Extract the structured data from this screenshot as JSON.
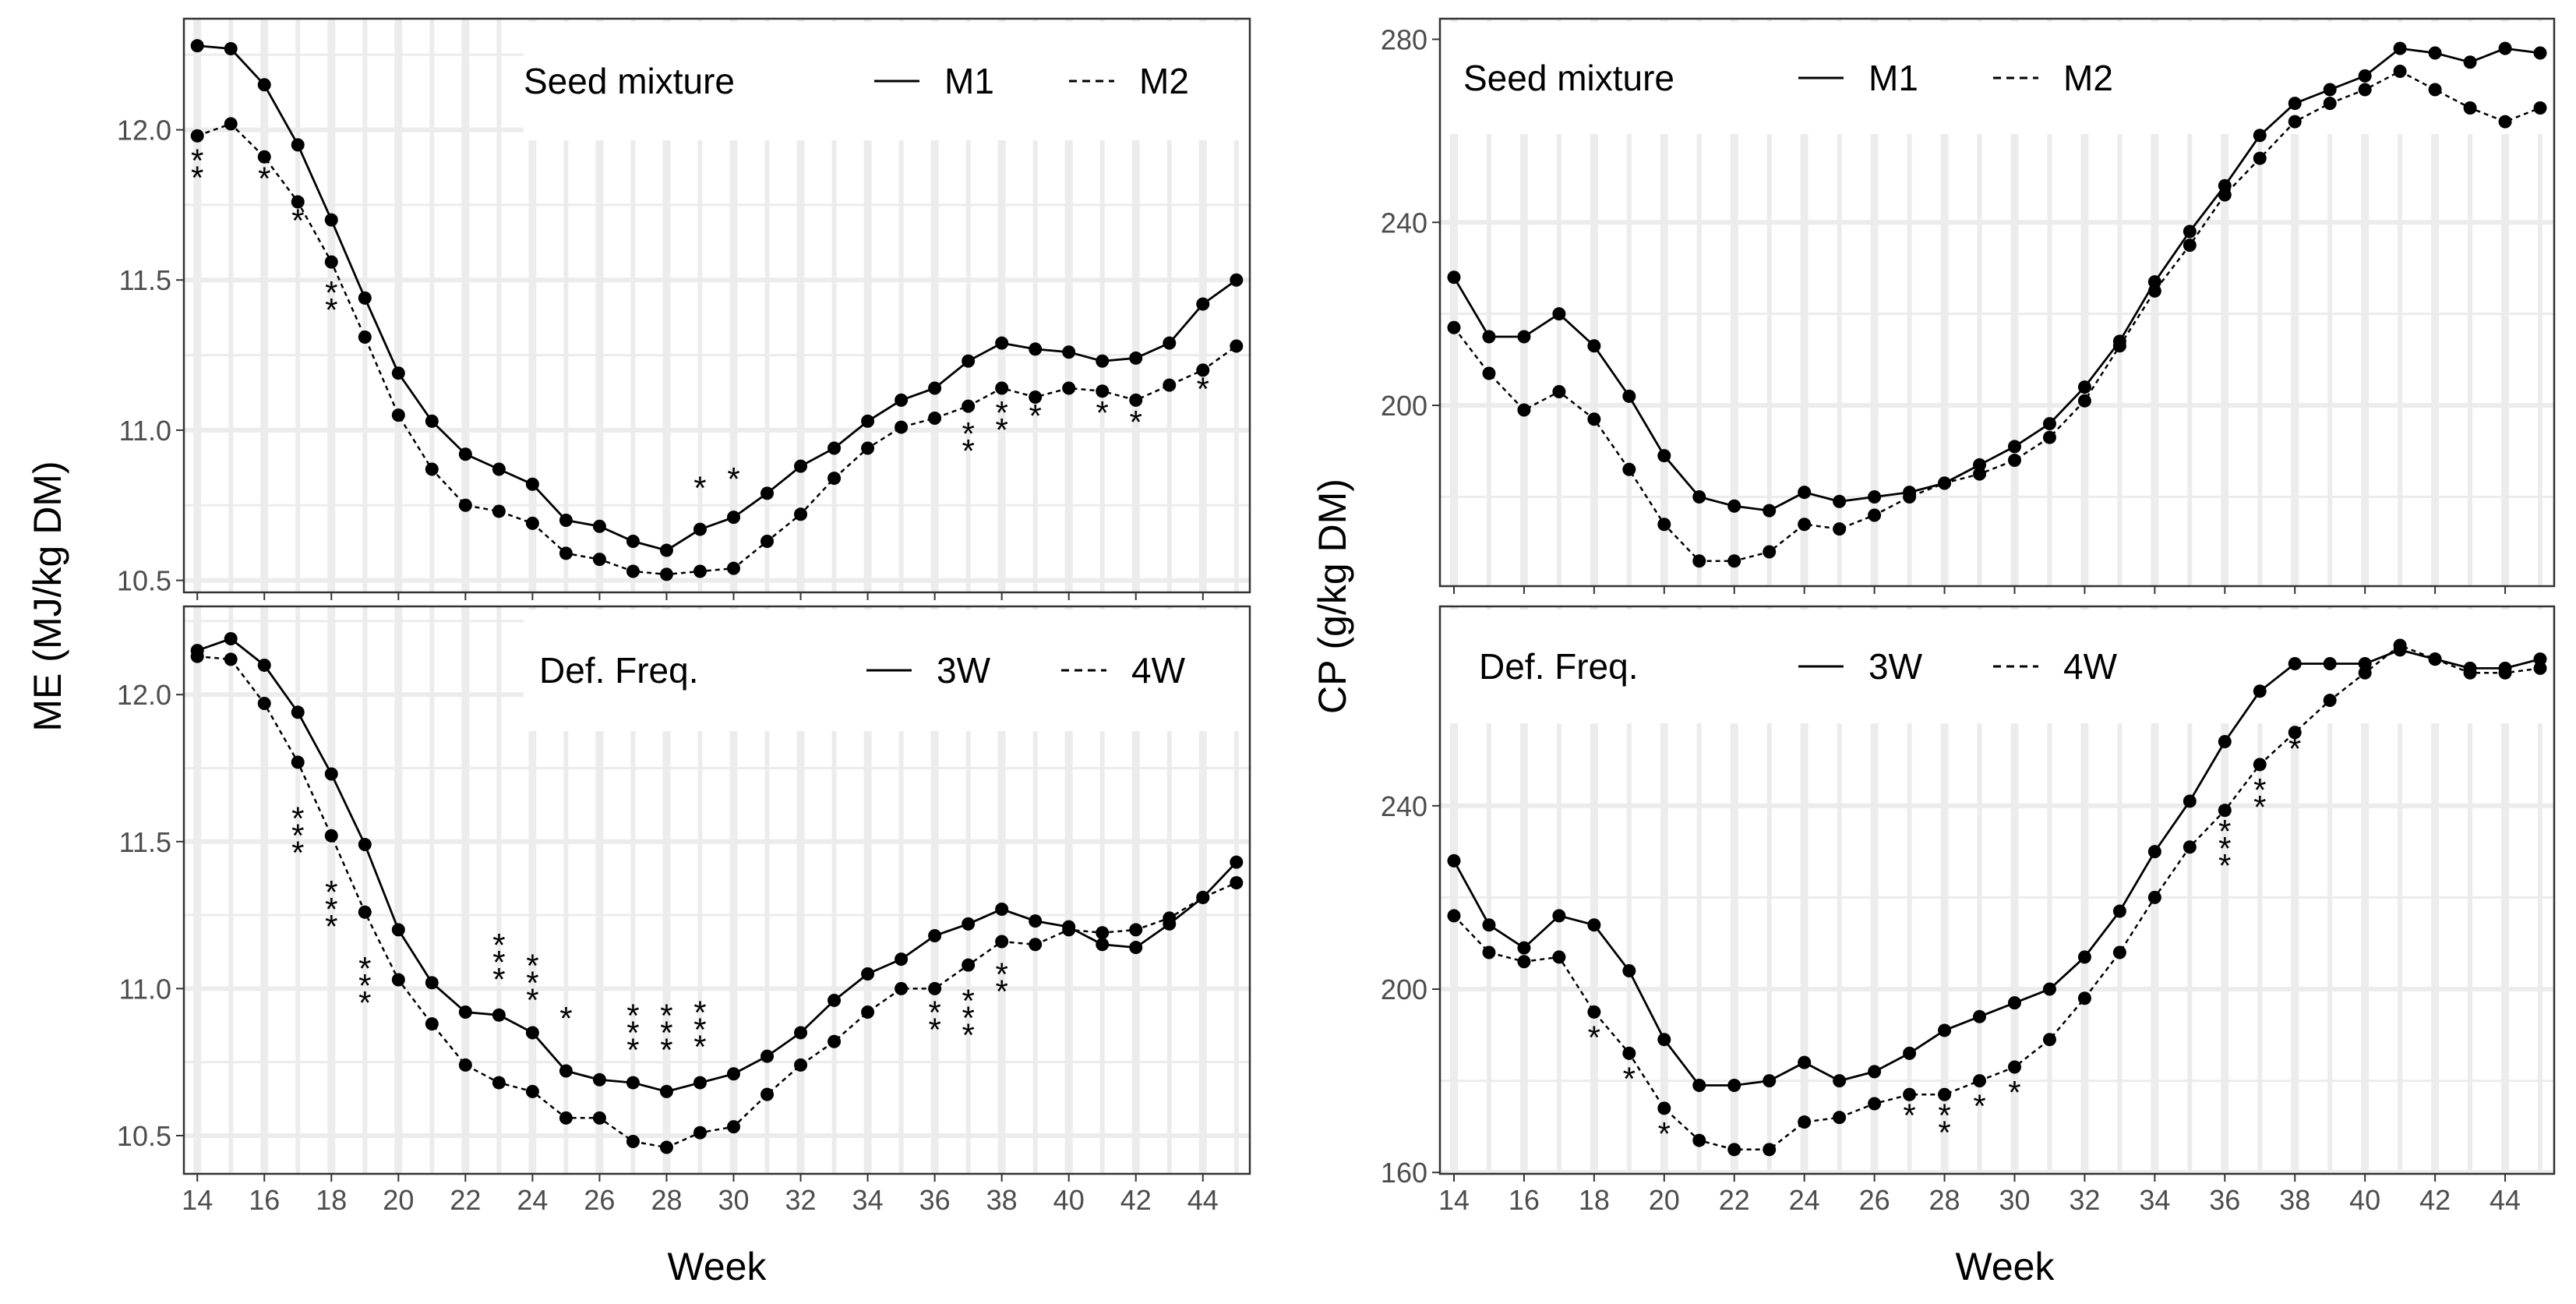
{
  "figure": {
    "x_axis_label": "Week",
    "left_y_label": "ME (MJ/kg DM)",
    "right_y_label": "CP (g/kg DM)"
  },
  "chart_data": [
    {
      "id": "me_seed",
      "type": "line",
      "ylabel": "ME (MJ/kg DM)",
      "xlabel": "Week",
      "xlim": [
        13.6,
        45.4
      ],
      "ylim": [
        10.46,
        12.37
      ],
      "x_ticks": [
        14,
        16,
        18,
        20,
        22,
        24,
        26,
        28,
        30,
        32,
        34,
        36,
        38,
        40,
        42,
        44
      ],
      "y_ticks": [
        10.5,
        11.0,
        11.5,
        12.0
      ],
      "y_tick_labels": [
        "10.5",
        "11.0",
        "11.5",
        "12.0"
      ],
      "show_x_tick_labels": false,
      "legend": {
        "title": "Seed mixture",
        "placement": "top-right"
      },
      "x": [
        14,
        15,
        16,
        17,
        18,
        19,
        20,
        21,
        22,
        23,
        24,
        25,
        26,
        27,
        28,
        29,
        30,
        31,
        32,
        33,
        34,
        35,
        36,
        37,
        38,
        39,
        40,
        41,
        42,
        43,
        44,
        45
      ],
      "series": [
        {
          "name": "M1",
          "dash": "solid",
          "values": [
            12.28,
            12.27,
            12.15,
            11.95,
            11.7,
            11.44,
            11.19,
            11.03,
            10.92,
            10.87,
            10.82,
            10.7,
            10.68,
            10.63,
            10.6,
            10.67,
            10.71,
            10.79,
            10.88,
            10.94,
            11.03,
            11.1,
            11.14,
            11.23,
            11.29,
            11.27,
            11.26,
            11.23,
            11.24,
            11.29,
            11.42,
            11.5
          ]
        },
        {
          "name": "M2",
          "dash": "dashed",
          "values": [
            11.98,
            12.02,
            11.91,
            11.76,
            11.56,
            11.31,
            11.05,
            10.87,
            10.75,
            10.73,
            10.69,
            10.59,
            10.57,
            10.53,
            10.52,
            10.53,
            10.54,
            10.63,
            10.72,
            10.84,
            10.94,
            11.01,
            11.04,
            11.08,
            11.14,
            11.11,
            11.14,
            11.13,
            11.1,
            11.15,
            11.2,
            11.28
          ]
        }
      ],
      "annotations": [
        {
          "x": 14,
          "y": 11.86,
          "text": "**"
        },
        {
          "x": 16,
          "y": 11.8,
          "text": "*"
        },
        {
          "x": 17,
          "y": 11.66,
          "text": "*"
        },
        {
          "x": 18,
          "y": 11.42,
          "text": "**"
        },
        {
          "x": 29,
          "y": 10.77,
          "text": "*"
        },
        {
          "x": 30,
          "y": 10.8,
          "text": "*"
        },
        {
          "x": 37,
          "y": 10.95,
          "text": "**"
        },
        {
          "x": 38,
          "y": 11.02,
          "text": "**"
        },
        {
          "x": 39,
          "y": 11.01,
          "text": "*"
        },
        {
          "x": 41,
          "y": 11.02,
          "text": "*"
        },
        {
          "x": 42,
          "y": 10.99,
          "text": "*"
        },
        {
          "x": 44,
          "y": 11.1,
          "text": "*"
        }
      ]
    },
    {
      "id": "me_def",
      "type": "line",
      "ylabel": "ME (MJ/kg DM)",
      "xlabel": "Week",
      "xlim": [
        13.6,
        45.4
      ],
      "ylim": [
        10.37,
        12.3
      ],
      "x_ticks": [
        14,
        16,
        18,
        20,
        22,
        24,
        26,
        28,
        30,
        32,
        34,
        36,
        38,
        40,
        42,
        44
      ],
      "x_tick_labels": [
        "14",
        "16",
        "18",
        "20",
        "22",
        "24",
        "26",
        "28",
        "30",
        "32",
        "34",
        "36",
        "38",
        "40",
        "42",
        "44"
      ],
      "y_ticks": [
        10.5,
        11.0,
        11.5,
        12.0
      ],
      "y_tick_labels": [
        "10.5",
        "11.0",
        "11.5",
        "12.0"
      ],
      "show_x_tick_labels": true,
      "legend": {
        "title": "Def. Freq.",
        "placement": "top-right"
      },
      "x": [
        14,
        15,
        16,
        17,
        18,
        19,
        20,
        21,
        22,
        23,
        24,
        25,
        26,
        27,
        28,
        29,
        30,
        31,
        32,
        33,
        34,
        35,
        36,
        37,
        38,
        39,
        40,
        41,
        42,
        43,
        44,
        45
      ],
      "series": [
        {
          "name": "3W",
          "dash": "solid",
          "values": [
            12.15,
            12.19,
            12.1,
            11.94,
            11.73,
            11.49,
            11.2,
            11.02,
            10.92,
            10.91,
            10.85,
            10.72,
            10.69,
            10.68,
            10.65,
            10.68,
            10.71,
            10.77,
            10.85,
            10.96,
            11.05,
            11.1,
            11.18,
            11.22,
            11.27,
            11.23,
            11.21,
            11.15,
            11.14,
            11.22,
            11.31,
            11.43
          ]
        },
        {
          "name": "4W",
          "dash": "dashed",
          "values": [
            12.13,
            12.12,
            11.97,
            11.77,
            11.52,
            11.26,
            11.03,
            10.88,
            10.74,
            10.68,
            10.65,
            10.56,
            10.56,
            10.48,
            10.46,
            10.51,
            10.53,
            10.64,
            10.74,
            10.82,
            10.92,
            11.0,
            11.0,
            11.08,
            11.16,
            11.15,
            11.2,
            11.19,
            11.2,
            11.24,
            11.31,
            11.36
          ]
        }
      ],
      "annotations": [
        {
          "x": 17,
          "y": 11.54,
          "text": "***"
        },
        {
          "x": 18,
          "y": 11.29,
          "text": "***"
        },
        {
          "x": 19,
          "y": 11.03,
          "text": "***"
        },
        {
          "x": 23,
          "y": 11.11,
          "text": "***"
        },
        {
          "x": 24,
          "y": 11.04,
          "text": "***"
        },
        {
          "x": 25,
          "y": 10.86,
          "text": "*"
        },
        {
          "x": 27,
          "y": 10.87,
          "text": "***"
        },
        {
          "x": 28,
          "y": 10.87,
          "text": "***"
        },
        {
          "x": 29,
          "y": 10.88,
          "text": "***"
        },
        {
          "x": 36,
          "y": 10.88,
          "text": "**"
        },
        {
          "x": 37,
          "y": 10.92,
          "text": "***"
        },
        {
          "x": 38,
          "y": 11.01,
          "text": "**"
        }
      ]
    },
    {
      "id": "cp_seed",
      "type": "line",
      "ylabel": "CP (g/kg DM)",
      "xlabel": "Week",
      "xlim": [
        13.6,
        45.4
      ],
      "ylim": [
        160.5,
        284.5
      ],
      "x_ticks": [
        14,
        16,
        18,
        20,
        22,
        24,
        26,
        28,
        30,
        32,
        34,
        36,
        38,
        40,
        42,
        44
      ],
      "y_ticks": [
        200,
        240,
        280
      ],
      "y_tick_labels": [
        "200",
        "240",
        "280"
      ],
      "show_x_tick_labels": false,
      "legend": {
        "title": "Seed mixture",
        "placement": "top-left"
      },
      "x": [
        14,
        15,
        16,
        17,
        18,
        19,
        20,
        21,
        22,
        23,
        24,
        25,
        26,
        27,
        28,
        29,
        30,
        31,
        32,
        33,
        34,
        35,
        36,
        37,
        38,
        39,
        40,
        41,
        42,
        43,
        44,
        45
      ],
      "series": [
        {
          "name": "M1",
          "dash": "solid",
          "values": [
            228,
            215,
            215,
            220,
            213,
            202,
            189,
            180,
            178,
            177,
            181,
            179,
            180,
            181,
            183,
            187,
            191,
            196,
            204,
            214,
            227,
            238,
            248,
            259,
            266,
            269,
            272,
            278,
            277,
            275,
            278,
            277
          ]
        },
        {
          "name": "M2",
          "dash": "dashed",
          "values": [
            217,
            207,
            199,
            203,
            197,
            186,
            174,
            166,
            166,
            168,
            174,
            173,
            176,
            180,
            183,
            185,
            188,
            193,
            201,
            213,
            225,
            235,
            246,
            254,
            262,
            266,
            269,
            273,
            269,
            265,
            262,
            265
          ]
        }
      ],
      "annotations": []
    },
    {
      "id": "cp_def",
      "type": "line",
      "ylabel": "CP (g/kg DM)",
      "xlabel": "Week",
      "xlim": [
        13.6,
        45.4
      ],
      "ylim": [
        159.7,
        283.5
      ],
      "x_ticks": [
        14,
        16,
        18,
        20,
        22,
        24,
        26,
        28,
        30,
        32,
        34,
        36,
        38,
        40,
        42,
        44
      ],
      "x_tick_labels": [
        "14",
        "16",
        "18",
        "20",
        "22",
        "24",
        "26",
        "28",
        "30",
        "32",
        "34",
        "36",
        "38",
        "40",
        "42",
        "44"
      ],
      "y_ticks": [
        160,
        200,
        240
      ],
      "y_tick_labels": [
        "160",
        "200",
        "240"
      ],
      "show_x_tick_labels": true,
      "legend": {
        "title": "Def. Freq.",
        "placement": "top-left"
      },
      "x": [
        14,
        15,
        16,
        17,
        18,
        19,
        20,
        21,
        22,
        23,
        24,
        25,
        26,
        27,
        28,
        29,
        30,
        31,
        32,
        33,
        34,
        35,
        36,
        37,
        38,
        39,
        40,
        41,
        42,
        43,
        44,
        45
      ],
      "series": [
        {
          "name": "3W",
          "dash": "solid",
          "values": [
            228,
            214,
            209,
            216,
            214,
            204,
            189,
            179,
            179,
            180,
            184,
            180,
            182,
            186,
            191,
            194,
            197,
            200,
            207,
            217,
            230,
            241,
            254,
            265,
            271,
            271,
            271,
            274,
            272,
            270,
            270,
            272
          ]
        },
        {
          "name": "4W",
          "dash": "dashed",
          "values": [
            216,
            208,
            206,
            207,
            195,
            186,
            174,
            167,
            165,
            165,
            171,
            172,
            175,
            177,
            177,
            180,
            183,
            189,
            198,
            208,
            220,
            231,
            239,
            249,
            256,
            263,
            269,
            275,
            272,
            269,
            269,
            270
          ]
        }
      ],
      "annotations": [
        {
          "x": 18,
          "y": 187,
          "text": "*"
        },
        {
          "x": 19,
          "y": 178,
          "text": "*"
        },
        {
          "x": 20,
          "y": 166,
          "text": "*"
        },
        {
          "x": 27,
          "y": 170,
          "text": "*"
        },
        {
          "x": 28,
          "y": 170,
          "text": "**"
        },
        {
          "x": 29,
          "y": 172,
          "text": "*"
        },
        {
          "x": 30,
          "y": 175,
          "text": "*"
        },
        {
          "x": 36,
          "y": 232,
          "text": "***"
        },
        {
          "x": 37,
          "y": 241,
          "text": "**"
        },
        {
          "x": 38,
          "y": 250,
          "text": "*"
        }
      ]
    }
  ]
}
